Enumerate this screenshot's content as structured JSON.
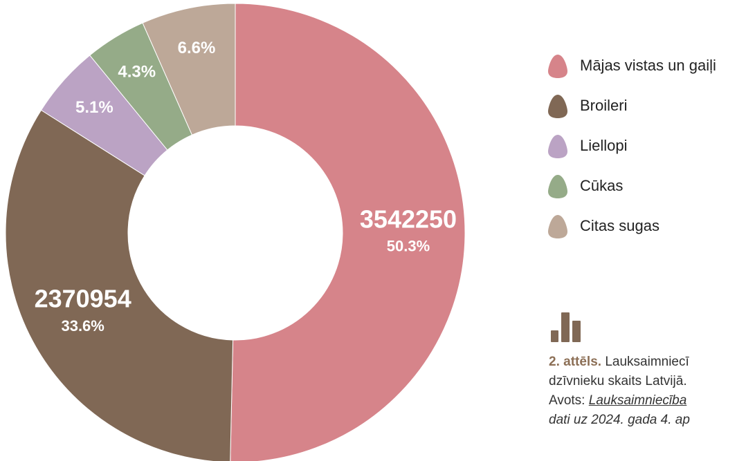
{
  "chart_data": {
    "type": "donut",
    "categories": [
      "Mājas vistas un gaiļi",
      "Broileri",
      "Liellopi",
      "Cūkas",
      "Citas sugas"
    ],
    "values": [
      50.3,
      33.6,
      5.1,
      4.3,
      6.6
    ],
    "value_labels": [
      "50.3%",
      "33.6%",
      "5.1%",
      "4.3%",
      "6.6%"
    ],
    "counts": [
      3542250,
      2370954,
      null,
      null,
      null
    ],
    "colors": [
      "#d6848a",
      "#806855",
      "#bba3c4",
      "#95ab88",
      "#bda898"
    ],
    "legend": "right"
  },
  "caption": {
    "label": "2. attēls.",
    "text1": "Lauksaimniecī",
    "text2": "dzīvnieku skaits Latvijā.",
    "source_prefix": "Avots:",
    "source_link": "Lauksaimniecība",
    "source_line2": "dati uz 2024. gada 4. ap"
  }
}
